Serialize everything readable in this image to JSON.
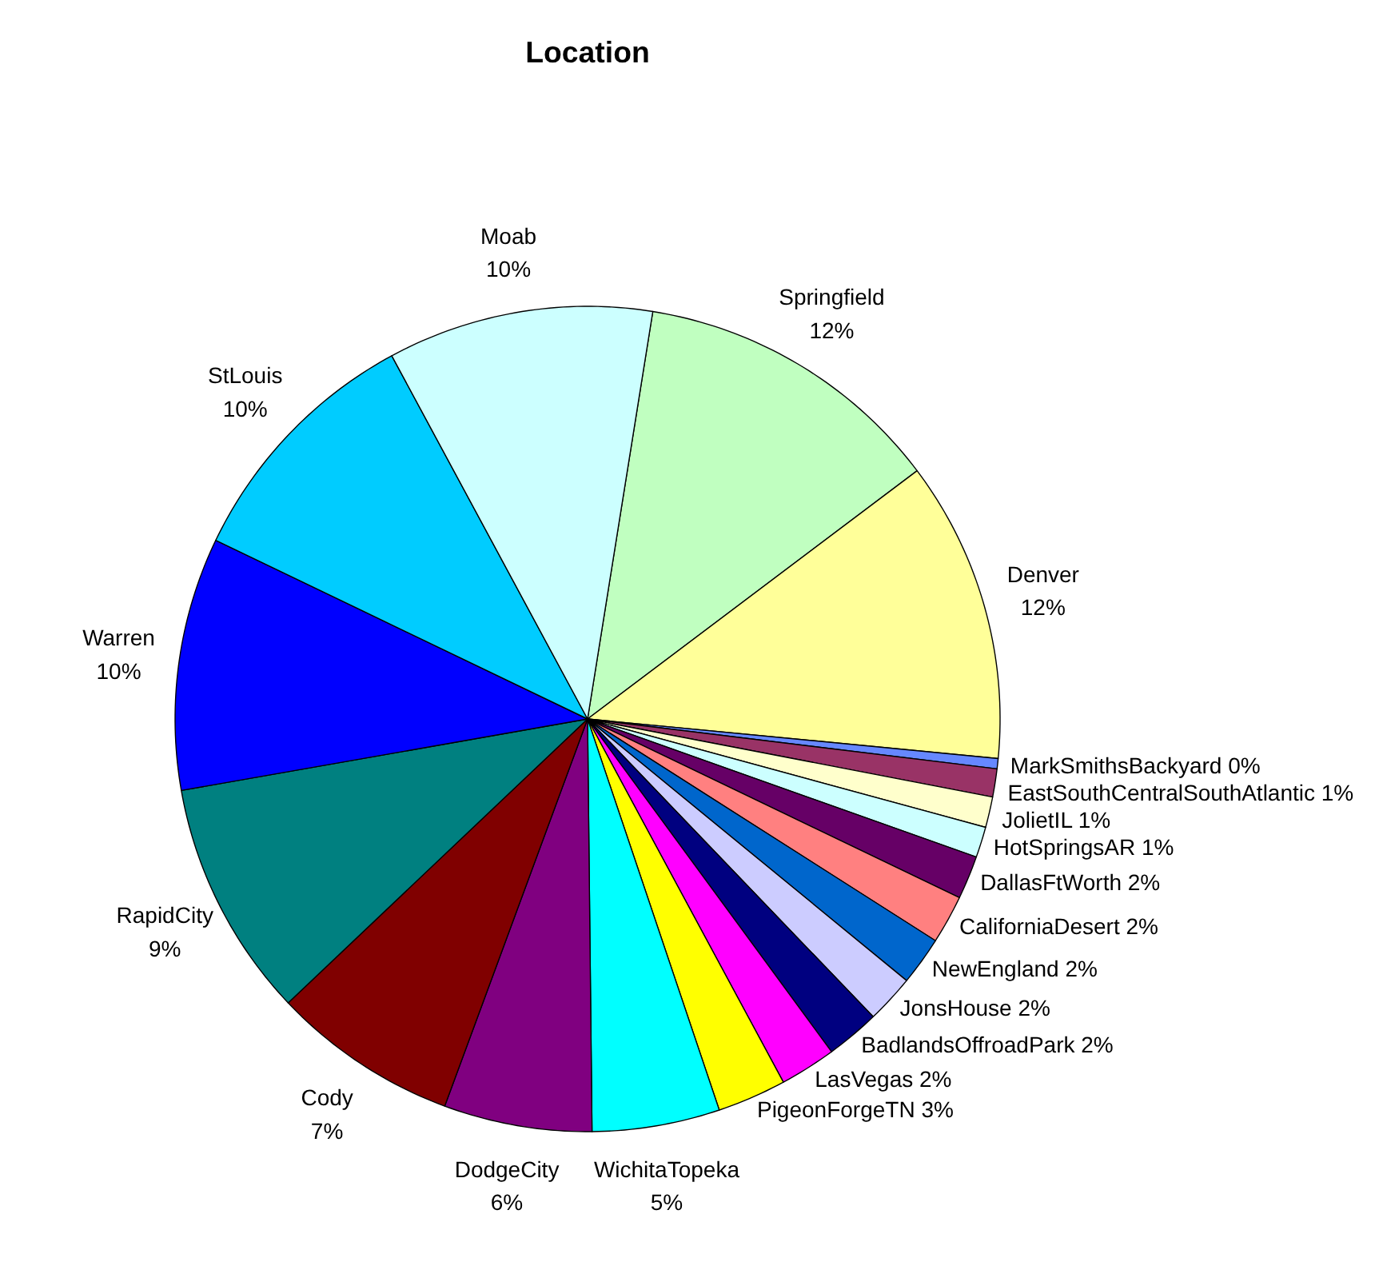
{
  "chart_data": {
    "type": "pie",
    "title": "Location",
    "categories": [
      "Springfield",
      "Denver",
      "MarkSmithsBackyard",
      "EastSouthCentralSouthAtlantic",
      "JolietIL",
      "HotSpringsAR",
      "DallasFtWorth",
      "CaliforniaDesert",
      "NewEngland",
      "JonsHouse",
      "BadlandsOffroadPark",
      "LasVegas",
      "PigeonForgeTN",
      "WichitaTopeka",
      "DodgeCity",
      "Cody",
      "RapidCity",
      "Warren",
      "StLouis",
      "Moab"
    ],
    "values": [
      12.2,
      11.8,
      0.4,
      1.1,
      1.2,
      1.2,
      1.7,
      1.9,
      1.9,
      1.9,
      2.1,
      2.2,
      2.7,
      5.0,
      5.8,
      7.3,
      9.3,
      9.9,
      10.0,
      10.4
    ],
    "value_labels": [
      "12%",
      "12%",
      "0%",
      "1%",
      "1%",
      "1%",
      "2%",
      "2%",
      "2%",
      "2%",
      "2%",
      "2%",
      "3%",
      "5%",
      "6%",
      "7%",
      "9%",
      "10%",
      "10%",
      "10%"
    ],
    "colors": [
      "#c0ffc0",
      "#ffff99",
      "#6688ff",
      "#993366",
      "#ffffcc",
      "#ccffff",
      "#660066",
      "#ff8080",
      "#0066cc",
      "#ccccff",
      "#000080",
      "#ff00ff",
      "#ffff00",
      "#00ffff",
      "#800080",
      "#800000",
      "#008080",
      "#0000ff",
      "#00ccff",
      "#ccffff"
    ]
  }
}
